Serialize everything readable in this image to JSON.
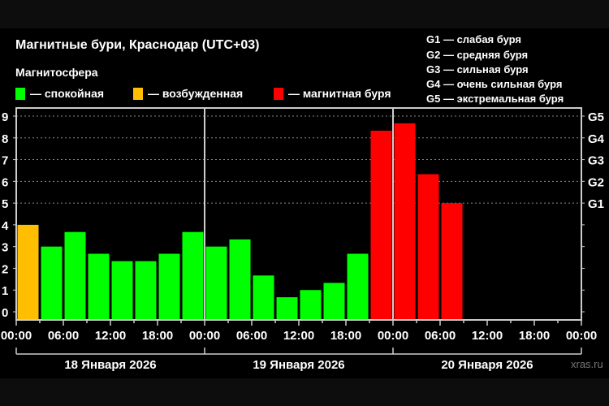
{
  "title": "Магнитные бури, Краснодар (UTC+03)",
  "legend": {
    "heading": "Магнитосфера",
    "items": [
      {
        "label": "— спокойная",
        "color": "#00ff00"
      },
      {
        "label": "— возбужденная",
        "color": "#ffbf00"
      },
      {
        "label": "— магнитная буря",
        "color": "#ff0000"
      }
    ]
  },
  "g_scale": [
    "G1 — слабая буря",
    "G2 — средняя буря",
    "G3 — сильная буря",
    "G4 — очень сильная буря",
    "G5 — экстремальная буря"
  ],
  "source": "xras.ru",
  "chart_data": {
    "type": "bar",
    "title": "Магнитные бури, Краснодар (UTC+03)",
    "ylim": [
      0,
      9
    ],
    "y_ticks": [
      "0",
      "1",
      "2",
      "3",
      "4",
      "5",
      "6",
      "7",
      "8",
      "9"
    ],
    "right_ticks": [
      {
        "label": "G1",
        "value": 5
      },
      {
        "label": "G2",
        "value": 6
      },
      {
        "label": "G3",
        "value": 7
      },
      {
        "label": "G4",
        "value": 8
      },
      {
        "label": "G5",
        "value": 9
      }
    ],
    "x_tick_labels": [
      "00:00",
      "06:00",
      "12:00",
      "18:00",
      "00:00",
      "06:00",
      "12:00",
      "18:00",
      "00:00",
      "06:00",
      "12:00",
      "18:00",
      "00:00"
    ],
    "days": [
      "18 Января 2026",
      "19 Января 2026",
      "20 Января 2026"
    ],
    "slots_per_day": 8,
    "grid": "dotted horizontal at 5–9",
    "values": [
      4.0,
      3.0,
      3.67,
      2.67,
      2.33,
      2.33,
      2.67,
      3.67,
      3.0,
      3.33,
      1.67,
      0.67,
      1.0,
      1.33,
      2.67,
      8.33,
      8.67,
      6.33,
      5.0
    ],
    "colors": [
      "#ffbf00",
      "#00ff00",
      "#00ff00",
      "#00ff00",
      "#00ff00",
      "#00ff00",
      "#00ff00",
      "#00ff00",
      "#00ff00",
      "#00ff00",
      "#00ff00",
      "#00ff00",
      "#00ff00",
      "#00ff00",
      "#00ff00",
      "#ff0000",
      "#ff0000",
      "#ff0000",
      "#ff0000"
    ]
  }
}
